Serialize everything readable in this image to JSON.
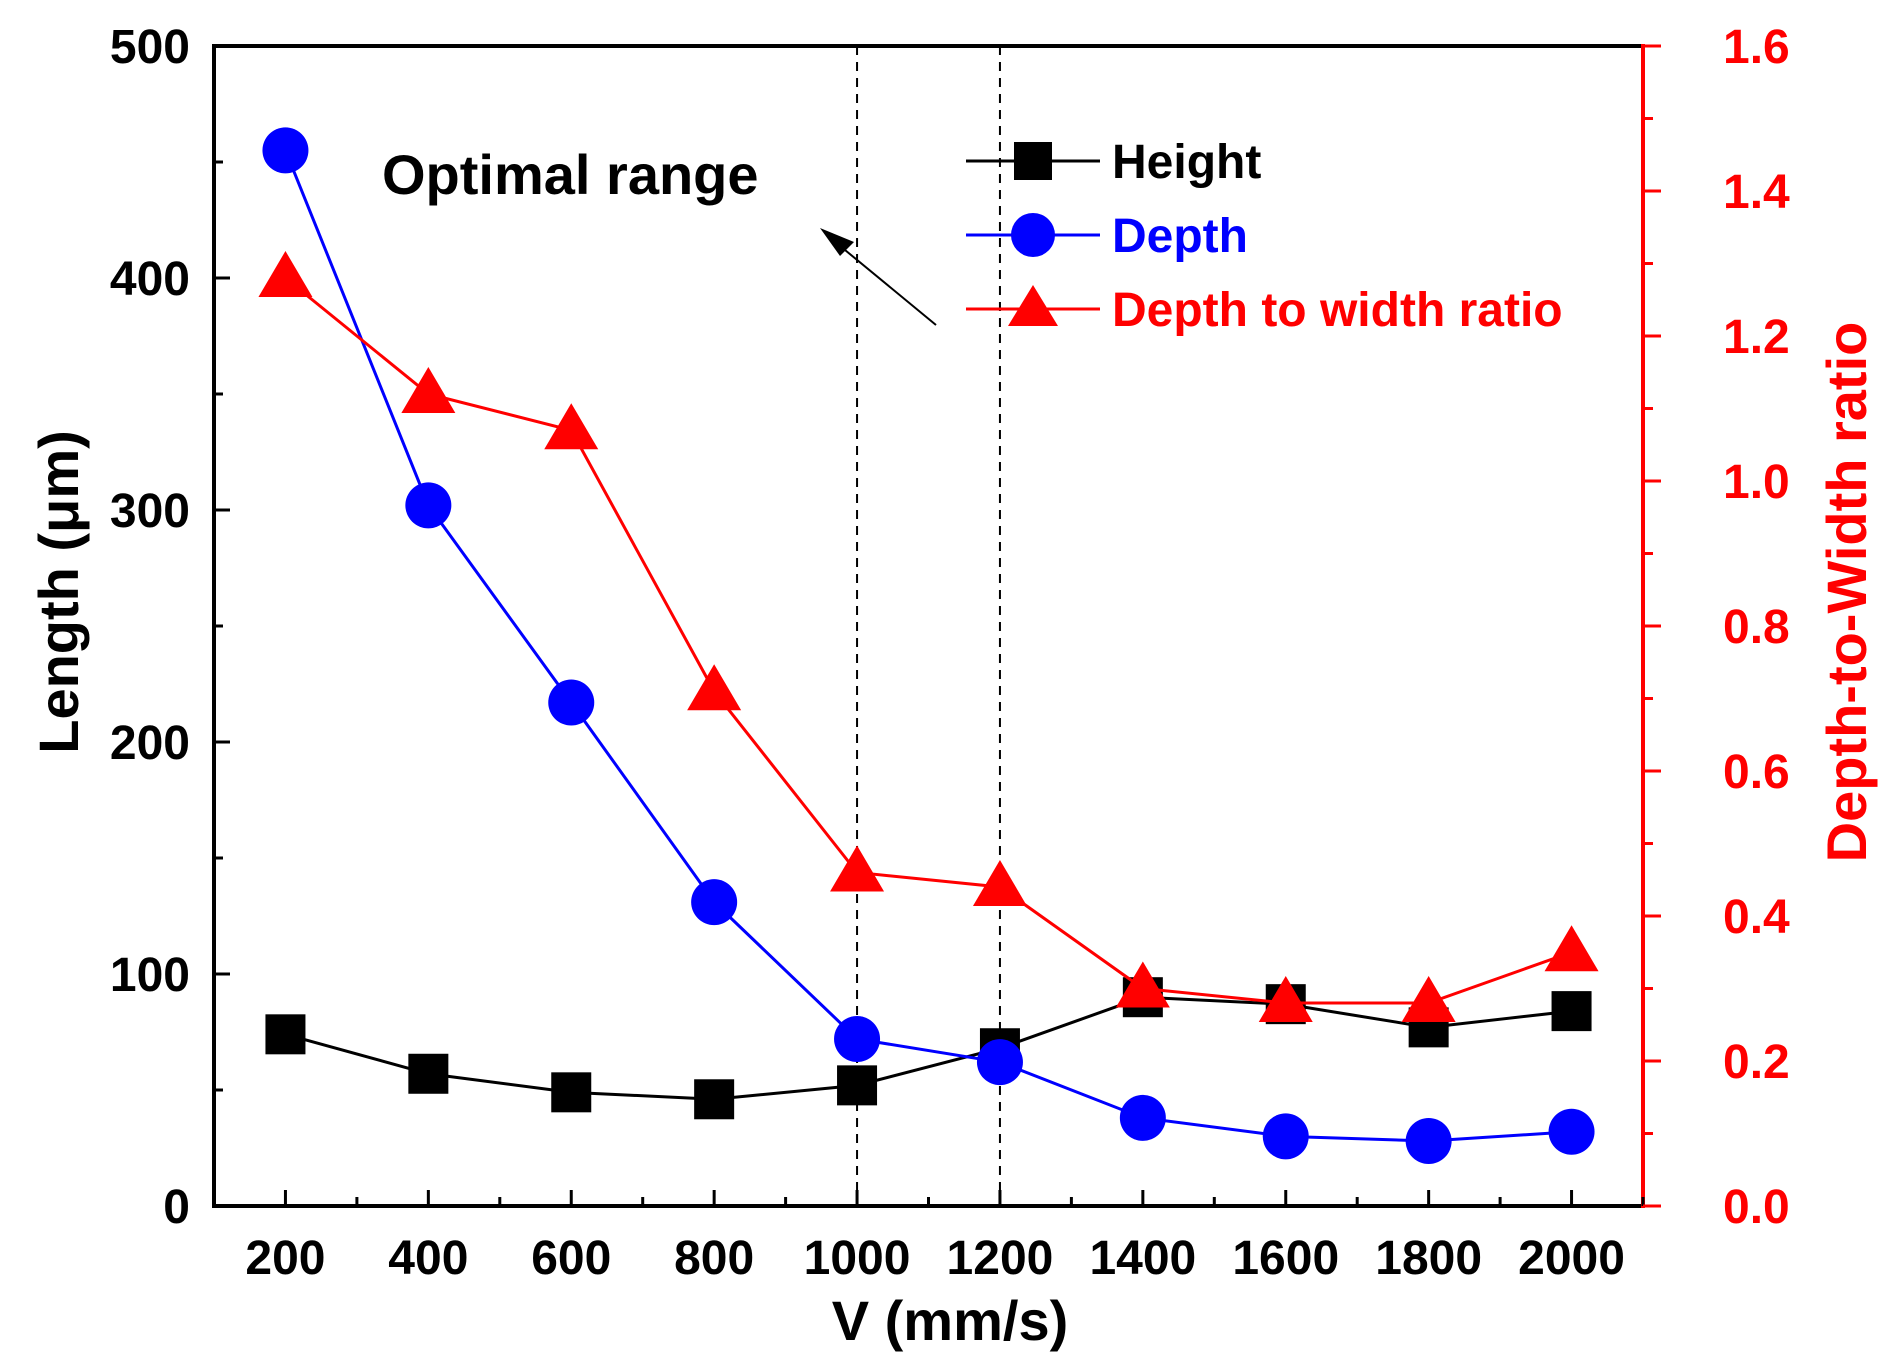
{
  "chart_data": {
    "type": "line",
    "xlabel": "V (mm/s)",
    "ylabel": "Length (μm)",
    "y2label": "Depth-to-Width ratio",
    "x": [
      200,
      400,
      600,
      800,
      1000,
      1200,
      1400,
      1600,
      1800,
      2000
    ],
    "xticks": [
      "200",
      "400",
      "600",
      "800",
      "1000",
      "1200",
      "1400",
      "1600",
      "1800",
      "2000"
    ],
    "ylim": [
      0,
      500
    ],
    "yticks": [
      "0",
      "100",
      "200",
      "300",
      "400",
      "500"
    ],
    "y2lim": [
      0,
      1.6
    ],
    "y2ticks": [
      "0.0",
      "0.2",
      "0.4",
      "0.6",
      "0.8",
      "1.0",
      "1.2",
      "1.4",
      "1.6"
    ],
    "series": [
      {
        "name": "Height",
        "axis": "left",
        "marker": "square",
        "color": "#000000",
        "values": [
          74,
          57,
          49,
          46,
          52,
          68,
          90,
          87,
          77,
          84
        ]
      },
      {
        "name": "Depth",
        "axis": "left",
        "marker": "circle",
        "color": "#0000ff",
        "values": [
          455,
          302,
          217,
          131,
          72,
          62,
          38,
          30,
          28,
          32
        ]
      },
      {
        "name": "Depth to width ratio",
        "axis": "right",
        "marker": "triangle",
        "color": "#ff0000",
        "values": [
          1.28,
          1.12,
          1.07,
          0.71,
          0.46,
          0.44,
          0.3,
          0.28,
          0.28,
          0.35
        ]
      }
    ],
    "annotation": {
      "text": "Optimal range",
      "x_range": [
        1000,
        1200
      ]
    },
    "legend_position": "top-right",
    "grid": false
  }
}
